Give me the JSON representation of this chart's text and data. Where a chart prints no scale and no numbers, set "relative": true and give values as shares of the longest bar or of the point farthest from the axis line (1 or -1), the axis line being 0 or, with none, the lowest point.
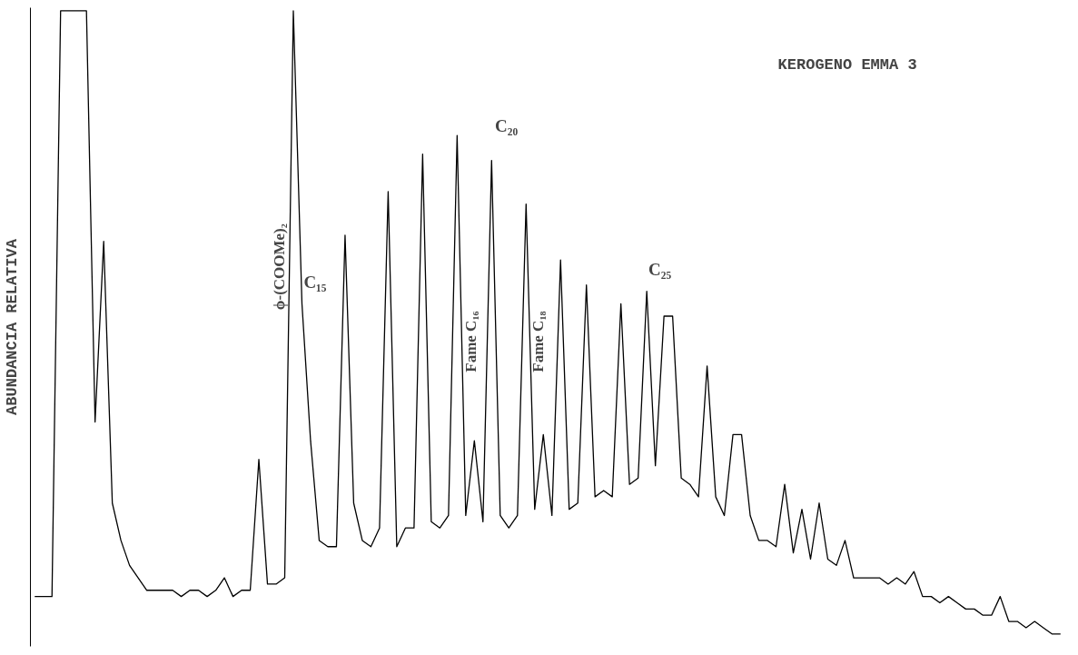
{
  "chart_data": {
    "type": "line",
    "relative": true,
    "title": "KEROGENO EMMA 3",
    "ylabel": "ABUNDANCIA RELATIVA",
    "color": "#000000",
    "categories": [
      null,
      null,
      null,
      null,
      null,
      null,
      null,
      null,
      null,
      null,
      null,
      null,
      null,
      null,
      null,
      null,
      null,
      null,
      null,
      null,
      null,
      null,
      null,
      null,
      null,
      null,
      null,
      null,
      null,
      null,
      null,
      null,
      null,
      null,
      null,
      null,
      null,
      null,
      null,
      null,
      null,
      null,
      null,
      null,
      null,
      null,
      null,
      null,
      null,
      null,
      null,
      null,
      null,
      null,
      null,
      null,
      null,
      null,
      null,
      null,
      null,
      null,
      null,
      null,
      null,
      null,
      null,
      null,
      null,
      null,
      null,
      null,
      null,
      null,
      null,
      null,
      null,
      null,
      null,
      null,
      null,
      null,
      null,
      null,
      null,
      null,
      null,
      null,
      null,
      null,
      null,
      null,
      null,
      null,
      null,
      null,
      null,
      null,
      null,
      null,
      null,
      null,
      null,
      null,
      null,
      null,
      null,
      null,
      null,
      null,
      null,
      null,
      null,
      null,
      null,
      null,
      null,
      null,
      null,
      null
    ],
    "values": [
      0.06,
      0.06,
      0.06,
      1,
      1,
      1,
      1,
      0.34,
      0.63,
      0.21,
      0.15,
      0.11,
      0.09,
      0.07,
      0.07,
      0.07,
      0.07,
      0.06,
      0.07,
      0.07,
      0.06,
      0.07,
      0.09,
      0.06,
      0.07,
      0.07,
      0.28,
      0.08,
      0.08,
      0.09,
      1,
      0.53,
      0.31,
      0.15,
      0.14,
      0.14,
      0.64,
      0.21,
      0.15,
      0.14,
      0.17,
      0.71,
      0.14,
      0.17,
      0.17,
      0.77,
      0.18,
      0.17,
      0.19,
      0.8,
      0.19,
      0.31,
      0.18,
      0.76,
      0.19,
      0.17,
      0.19,
      0.69,
      0.2,
      0.32,
      0.19,
      0.6,
      0.2,
      0.21,
      0.56,
      0.22,
      0.23,
      0.22,
      0.53,
      0.24,
      0.25,
      0.55,
      0.27,
      0.51,
      0.51,
      0.25,
      0.24,
      0.22,
      0.43,
      0.22,
      0.19,
      0.32,
      0.32,
      0.19,
      0.15,
      0.15,
      0.14,
      0.24,
      0.13,
      0.2,
      0.12,
      0.21,
      0.12,
      0.11,
      0.15,
      0.09,
      0.09,
      0.09,
      0.09,
      0.08,
      0.09,
      0.08,
      0.1,
      0.06,
      0.06,
      0.05,
      0.06,
      0.05,
      0.04,
      0.04,
      0.03,
      0.03,
      0.06,
      0.02,
      0.02,
      0.01,
      0.02,
      0.01,
      0.0,
      0.0
    ],
    "annotations": [
      "ϕ-(COOMe)₂",
      "C₁₅",
      "Fame C₁₆",
      "C₂₀",
      "Fame C₁₈",
      "C₂₅"
    ]
  }
}
